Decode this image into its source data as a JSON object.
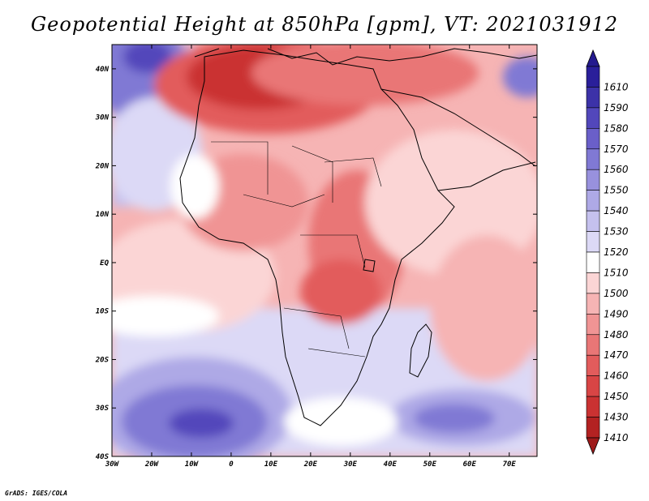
{
  "title": "Geopotential Height at 850hPa [gpm], VT: 2021031912",
  "footer": "GrADS: IGES/COLA",
  "map": {
    "lon_range": [
      -30,
      77
    ],
    "lat_range": [
      -40,
      45
    ],
    "x_ticks": [
      {
        "lon": -30,
        "label": "30W"
      },
      {
        "lon": -20,
        "label": "20W"
      },
      {
        "lon": -10,
        "label": "10W"
      },
      {
        "lon": 0,
        "label": "0"
      },
      {
        "lon": 10,
        "label": "10E"
      },
      {
        "lon": 20,
        "label": "20E"
      },
      {
        "lon": 30,
        "label": "30E"
      },
      {
        "lon": 40,
        "label": "40E"
      },
      {
        "lon": 50,
        "label": "50E"
      },
      {
        "lon": 60,
        "label": "60E"
      },
      {
        "lon": 70,
        "label": "70E"
      }
    ],
    "y_ticks": [
      {
        "lat": 40,
        "label": "40N"
      },
      {
        "lat": 30,
        "label": "30N"
      },
      {
        "lat": 20,
        "label": "20N"
      },
      {
        "lat": 10,
        "label": "10N"
      },
      {
        "lat": 0,
        "label": "EQ"
      },
      {
        "lat": -10,
        "label": "10S"
      },
      {
        "lat": -20,
        "label": "20S"
      },
      {
        "lat": -30,
        "label": "30S"
      },
      {
        "lat": -40,
        "label": "40S"
      }
    ]
  },
  "colorbar": {
    "levels": [
      {
        "label": "1610",
        "color": "#2a1f9a"
      },
      {
        "label": "1590",
        "color": "#3c32a8"
      },
      {
        "label": "1580",
        "color": "#5247bb"
      },
      {
        "label": "1570",
        "color": "#6a5fc9"
      },
      {
        "label": "1560",
        "color": "#8079d4"
      },
      {
        "label": "1550",
        "color": "#9891dd"
      },
      {
        "label": "1540",
        "color": "#aea9e6"
      },
      {
        "label": "1530",
        "color": "#c5c1ee"
      },
      {
        "label": "1520",
        "color": "#dcd9f6"
      },
      {
        "label": "1510",
        "color": "#ffffff"
      },
      {
        "label": "1500",
        "color": "#fbd5d5"
      },
      {
        "label": "1490",
        "color": "#f6b4b4"
      },
      {
        "label": "1480",
        "color": "#f09494"
      },
      {
        "label": "1470",
        "color": "#e97676"
      },
      {
        "label": "1460",
        "color": "#e25c5c"
      },
      {
        "label": "1450",
        "color": "#d84545"
      },
      {
        "label": "1430",
        "color": "#ca3232"
      },
      {
        "label": "1410",
        "color": "#b32222"
      }
    ],
    "top_arrow_color": "#241a8e",
    "bottom_arrow_color": "#9e1a1a"
  }
}
